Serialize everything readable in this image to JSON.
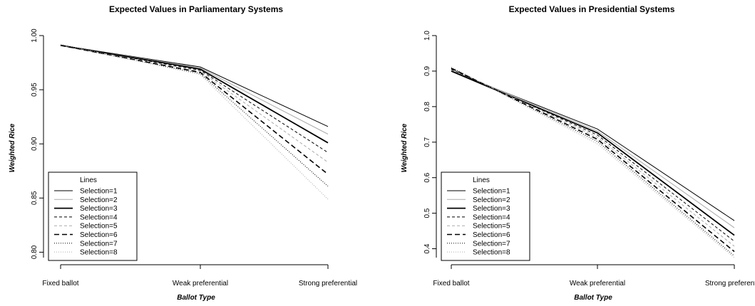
{
  "chart_data": [
    {
      "type": "line",
      "title": "Expected Values in Parliamentary Systems",
      "xlabel": "Ballot Type",
      "ylabel": "Weighted Rice",
      "categories": [
        "Fixed ballot",
        "Weak preferential",
        "Strong preferential"
      ],
      "ylim": [
        0.795,
        1.0
      ],
      "yticks": [
        0.8,
        0.85,
        0.9,
        0.95,
        1.0
      ],
      "ytick_labels": [
        "0.80",
        "0.85",
        "0.90",
        "0.95",
        "1.00"
      ],
      "grid": false,
      "legend": {
        "title": "Lines",
        "position": "bottom-left"
      },
      "series": [
        {
          "name": "Selection=1",
          "values": [
            0.991,
            0.971,
            0.916
          ]
        },
        {
          "name": "Selection=2",
          "values": [
            0.991,
            0.97,
            0.909
          ]
        },
        {
          "name": "Selection=3",
          "values": [
            0.991,
            0.969,
            0.901
          ]
        },
        {
          "name": "Selection=4",
          "values": [
            0.991,
            0.968,
            0.892
          ]
        },
        {
          "name": "Selection=5",
          "values": [
            0.991,
            0.967,
            0.883
          ]
        },
        {
          "name": "Selection=6",
          "values": [
            0.991,
            0.966,
            0.872
          ]
        },
        {
          "name": "Selection=7",
          "values": [
            0.991,
            0.965,
            0.861
          ]
        },
        {
          "name": "Selection=8",
          "values": [
            0.992,
            0.964,
            0.849
          ]
        }
      ]
    },
    {
      "type": "line",
      "title": "Expected Values in Presidential Systems",
      "xlabel": "Ballot Type",
      "ylabel": "Weighted Rice",
      "categories": [
        "Fixed ballot",
        "Weak preferential",
        "Strong preferential"
      ],
      "ylim": [
        0.375,
        1.0
      ],
      "yticks": [
        0.4,
        0.5,
        0.6,
        0.7,
        0.8,
        0.9,
        1.0
      ],
      "ytick_labels": [
        "0.4",
        "0.5",
        "0.6",
        "0.7",
        "0.8",
        "0.9",
        "1.0"
      ],
      "grid": false,
      "legend": {
        "title": "Lines",
        "position": "bottom-left"
      },
      "series": [
        {
          "name": "Selection=1",
          "values": [
            0.9,
            0.737,
            0.479
          ]
        },
        {
          "name": "Selection=2",
          "values": [
            0.903,
            0.731,
            0.459
          ]
        },
        {
          "name": "Selection=3",
          "values": [
            0.9,
            0.726,
            0.438
          ]
        },
        {
          "name": "Selection=4",
          "values": [
            0.905,
            0.72,
            0.421
          ]
        },
        {
          "name": "Selection=5",
          "values": [
            0.907,
            0.714,
            0.407
          ]
        },
        {
          "name": "Selection=6",
          "values": [
            0.908,
            0.708,
            0.392
          ]
        },
        {
          "name": "Selection=7",
          "values": [
            0.909,
            0.702,
            0.38
          ]
        },
        {
          "name": "Selection=8",
          "values": [
            0.912,
            0.695,
            0.375
          ]
        }
      ]
    }
  ]
}
